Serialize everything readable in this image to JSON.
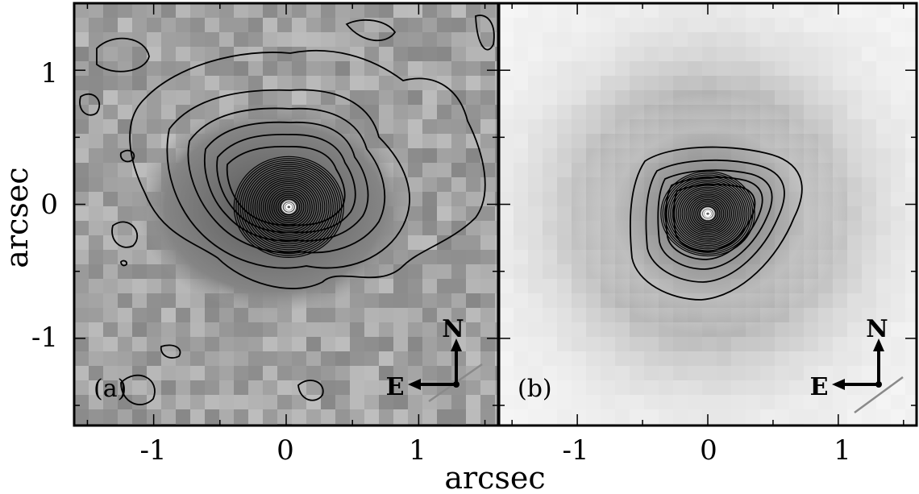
{
  "chart_data": {
    "type": "image",
    "xlabel": "arcsec",
    "ylabel": "arcsec",
    "xlim": [
      -1.6,
      1.6
    ],
    "ylim": [
      -1.65,
      1.5
    ],
    "x_ticks": [
      {
        "value": -1,
        "label": "-1"
      },
      {
        "value": 0,
        "label": "0"
      },
      {
        "value": 1,
        "label": "1"
      }
    ],
    "y_ticks": [
      {
        "value": 1,
        "label": "1"
      },
      {
        "value": 0,
        "label": "0"
      },
      {
        "value": -1,
        "label": "-1"
      }
    ],
    "panels": [
      {
        "id": "a",
        "label": "(a)",
        "background": "noisy-gray",
        "center": [
          0.02,
          -0.02
        ],
        "compass": {
          "north": "N",
          "east": "E"
        }
      },
      {
        "id": "b",
        "label": "(b)",
        "background": "light-smooth",
        "center": [
          0.0,
          -0.07
        ],
        "compass": {
          "north": "N",
          "east": "E"
        }
      }
    ]
  },
  "colors": {
    "frame": "#000000",
    "panel_a_bg": "#9a9a9a",
    "panel_b_bg": "#f2f2f2",
    "contour": "#000000",
    "slit_line": "#8a8a8a"
  }
}
